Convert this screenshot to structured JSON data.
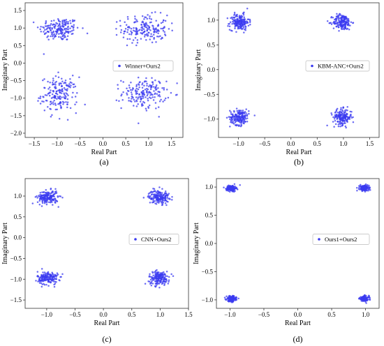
{
  "chart_data": [
    {
      "type": "scatter",
      "caption": "(a)",
      "xlabel": "Real Part",
      "ylabel": "Imaginary Part",
      "xlim": [
        -1.7,
        1.75
      ],
      "ylim": [
        -2.12,
        1.72
      ],
      "xticks": [
        "-1.5",
        "-1.0",
        "-0.5",
        "0.0",
        "0.5",
        "1.0",
        "1.5"
      ],
      "yticks": [
        "-2.0",
        "-1.5",
        "-1.0",
        "-0.5",
        "0.0",
        "0.5",
        "1.0",
        "1.5"
      ],
      "legend": {
        "label": "Winner+Ours2",
        "placement": "center-right"
      },
      "color": "#3b3bf0",
      "series": [
        {
          "name": "Winner+Ours2",
          "clusters": [
            {
              "center": [
                -0.95,
                0.97
              ],
              "spread": [
                0.22,
                0.17
              ],
              "count": 180
            },
            {
              "center": [
                0.92,
                0.97
              ],
              "spread": [
                0.25,
                0.2
              ],
              "count": 180
            },
            {
              "center": [
                -0.95,
                -0.9
              ],
              "spread": [
                0.2,
                0.25
              ],
              "count": 180
            },
            {
              "center": [
                0.9,
                -0.87
              ],
              "spread": [
                0.24,
                0.22
              ],
              "count": 180
            }
          ]
        }
      ]
    },
    {
      "type": "scatter",
      "caption": "(b)",
      "xlabel": "Real Part",
      "ylabel": "Imaginary Part",
      "xlim": [
        -1.38,
        1.68
      ],
      "ylim": [
        -1.37,
        1.35
      ],
      "xticks": [
        "-1.0",
        "-0.5",
        "0.0",
        "0.5",
        "1.0",
        "1.5"
      ],
      "yticks": [
        "-1.0",
        "-0.5",
        "0.0",
        "0.5",
        "1.0"
      ],
      "legend": {
        "label": "KBM-ANC+Ours2",
        "placement": "center-right"
      },
      "color": "#3b3bf0",
      "series": [
        {
          "name": "KBM-ANC+Ours2",
          "clusters": [
            {
              "center": [
                -0.98,
                0.96
              ],
              "spread": [
                0.09,
                0.08
              ],
              "count": 180
            },
            {
              "center": [
                0.98,
                0.96
              ],
              "spread": [
                0.09,
                0.08
              ],
              "count": 180
            },
            {
              "center": [
                -0.98,
                -0.96
              ],
              "spread": [
                0.09,
                0.08
              ],
              "count": 180
            },
            {
              "center": [
                0.98,
                -0.96
              ],
              "spread": [
                0.09,
                0.08
              ],
              "count": 180
            }
          ]
        }
      ]
    },
    {
      "type": "scatter",
      "caption": "(c)",
      "xlabel": "Real Part",
      "ylabel": "Imaginary Part",
      "xlim": [
        -1.38,
        1.5
      ],
      "ylim": [
        -1.7,
        1.42
      ],
      "xticks": [
        "-1.0",
        "-0.5",
        "0.0",
        "0.5",
        "1.0",
        "1.5"
      ],
      "yticks": [
        "-1.5",
        "-1.0",
        "-0.5",
        "0.0",
        "0.5",
        "1.0"
      ],
      "legend": {
        "label": "CNN+Ours2",
        "placement": "center-right"
      },
      "color": "#3b3bf0",
      "series": [
        {
          "name": "CNN+Ours2",
          "clusters": [
            {
              "center": [
                -0.98,
                0.97
              ],
              "spread": [
                0.09,
                0.08
              ],
              "count": 180
            },
            {
              "center": [
                0.98,
                0.98
              ],
              "spread": [
                0.09,
                0.08
              ],
              "count": 180
            },
            {
              "center": [
                -0.98,
                -0.97
              ],
              "spread": [
                0.09,
                0.08
              ],
              "count": 180
            },
            {
              "center": [
                0.98,
                -0.97
              ],
              "spread": [
                0.09,
                0.08
              ],
              "count": 180
            }
          ]
        }
      ]
    },
    {
      "type": "scatter",
      "caption": "(d)",
      "xlabel": "Real Part",
      "ylabel": "Imaginary Part",
      "xlim": [
        -1.2,
        1.2
      ],
      "ylim": [
        -1.15,
        1.15
      ],
      "xticks": [
        "-1.0",
        "-0.5",
        "0.0",
        "0.5",
        "1.0"
      ],
      "yticks": [
        "-1.0",
        "-0.5",
        "0.0",
        "0.5",
        "1.0"
      ],
      "legend": {
        "label": "Ours1+Ours2",
        "placement": "center-right"
      },
      "color": "#3b3bf0",
      "series": [
        {
          "name": "Ours1+Ours2",
          "clusters": [
            {
              "center": [
                -0.98,
                0.98
              ],
              "spread": [
                0.035,
                0.025
              ],
              "count": 160
            },
            {
              "center": [
                0.98,
                0.98
              ],
              "spread": [
                0.035,
                0.025
              ],
              "count": 160
            },
            {
              "center": [
                -0.98,
                -0.98
              ],
              "spread": [
                0.035,
                0.025
              ],
              "count": 160
            },
            {
              "center": [
                0.98,
                -0.98
              ],
              "spread": [
                0.035,
                0.025
              ],
              "count": 160
            }
          ]
        }
      ]
    }
  ]
}
